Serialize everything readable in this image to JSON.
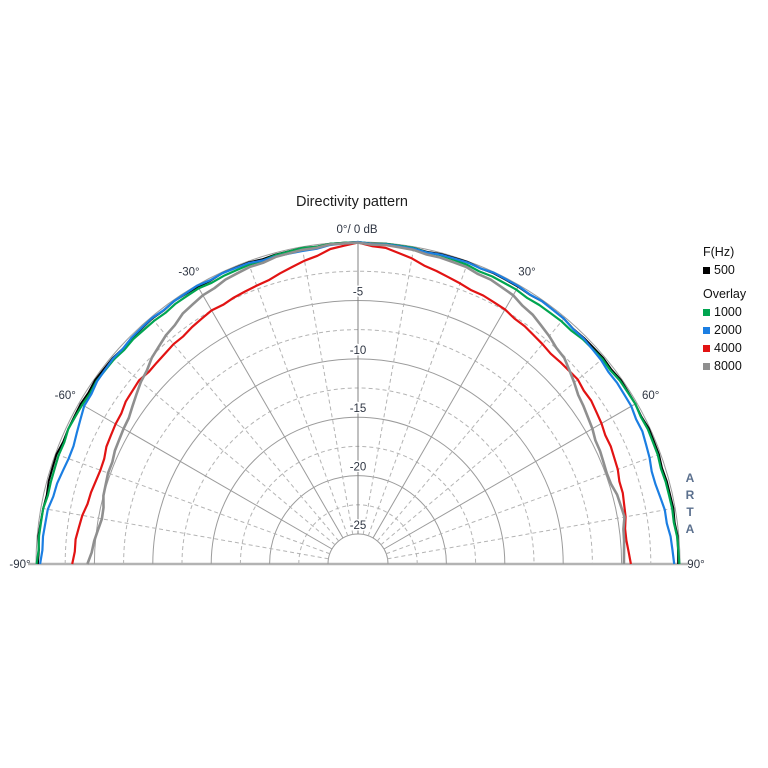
{
  "title": "Directivity pattern",
  "watermark": {
    "letters": [
      "A",
      "R",
      "T",
      "A"
    ],
    "color": "#5b708e"
  },
  "legend": {
    "freq_header": "F(Hz)",
    "main": {
      "label": "500",
      "color": "#000000"
    },
    "overlay_header": "Overlay",
    "overlays": [
      {
        "label": "1000",
        "color": "#00a550"
      },
      {
        "label": "2000",
        "color": "#1b7ee2"
      },
      {
        "label": "4000",
        "color": "#e21313"
      },
      {
        "label": "8000",
        "color": "#8f8f8f"
      }
    ]
  },
  "chart_data": {
    "type": "polar",
    "subtype": "directivity-half-polar",
    "title": "Directivity pattern",
    "apex_label": "0°/ 0 dB",
    "r_axis": {
      "unit": "dB",
      "max": 0,
      "min": -25,
      "major_step": 5,
      "minor_step": 2.5,
      "labels": [
        -5,
        -10,
        -15,
        -20,
        -25
      ]
    },
    "angle_axis": {
      "unit": "deg",
      "min": -90,
      "max": 90,
      "grid_step": 10,
      "major_step": 30
    },
    "angle_ticks": [
      {
        "angle": -90,
        "label": "-90°"
      },
      {
        "angle": -60,
        "label": "-60°"
      },
      {
        "angle": -30,
        "label": "-30°"
      },
      {
        "angle": 30,
        "label": "30°"
      },
      {
        "angle": 60,
        "label": "60°"
      },
      {
        "angle": 90,
        "label": "90°"
      }
    ],
    "grid_color": "#a8a8a8",
    "label_color": "#2e3542",
    "angles_deg": [
      -90,
      -85,
      -80,
      -75,
      -70,
      -65,
      -60,
      -55,
      -50,
      -45,
      -40,
      -35,
      -30,
      -25,
      -20,
      -15,
      -10,
      -5,
      0,
      5,
      10,
      15,
      20,
      25,
      30,
      35,
      40,
      45,
      50,
      55,
      60,
      65,
      70,
      75,
      80,
      85,
      90
    ],
    "series": [
      {
        "name": "500",
        "color": "#000000",
        "width": 2.0,
        "db": [
          -0.15,
          -0.1,
          -0.2,
          -0.15,
          -0.1,
          -0.2,
          -0.15,
          -0.1,
          -0.15,
          -0.2,
          -0.15,
          -0.1,
          -0.15,
          -0.1,
          -0.1,
          -0.15,
          -0.1,
          -0.05,
          0,
          -0.05,
          -0.1,
          -0.1,
          -0.05,
          -0.1,
          -0.15,
          -0.1,
          -0.15,
          -0.2,
          -0.15,
          -0.1,
          -0.15,
          -0.1,
          -0.15,
          -0.2,
          -0.15,
          -0.1,
          -0.15
        ]
      },
      {
        "name": "1000",
        "color": "#00a550",
        "width": 2.2,
        "db": [
          -0.05,
          -0.15,
          -0.2,
          -0.35,
          -0.3,
          -0.2,
          -0.3,
          -0.25,
          -0.3,
          -0.35,
          -0.4,
          -0.35,
          -0.3,
          -0.35,
          -0.3,
          -0.2,
          -0.1,
          -0.05,
          0,
          -0.05,
          -0.1,
          -0.2,
          -0.3,
          -0.4,
          -0.45,
          -0.5,
          -0.45,
          -0.35,
          -0.25,
          -0.2,
          -0.15,
          -0.2,
          -0.25,
          -0.3,
          -0.25,
          -0.15,
          -0.05
        ]
      },
      {
        "name": "2000",
        "color": "#1b7ee2",
        "width": 2.2,
        "db": [
          -0.35,
          -0.5,
          -0.6,
          -0.9,
          -1.2,
          -1.0,
          -0.5,
          -0.3,
          -0.2,
          -0.15,
          -0.1,
          -0.1,
          -0.05,
          -0.1,
          -0.15,
          -0.3,
          -0.35,
          -0.15,
          0,
          -0.1,
          -0.15,
          -0.15,
          -0.1,
          -0.05,
          -0.1,
          -0.1,
          -0.15,
          -0.25,
          -0.4,
          -0.5,
          -0.55,
          -0.7,
          -1.0,
          -1.2,
          -0.9,
          -0.7,
          -0.5
        ]
      },
      {
        "name": "4000",
        "color": "#e21313",
        "width": 2.2,
        "db": [
          -3.1,
          -3.3,
          -3.6,
          -3.9,
          -4.1,
          -3.8,
          -3.6,
          -3.3,
          -3.1,
          -3.2,
          -3.0,
          -2.8,
          -2.5,
          -2.4,
          -2.2,
          -1.8,
          -1.2,
          -0.5,
          -0.05,
          -0.4,
          -1.0,
          -1.6,
          -2.0,
          -2.2,
          -2.4,
          -2.7,
          -3.0,
          -3.1,
          -3.0,
          -3.2,
          -3.5,
          -3.7,
          -3.9,
          -4.1,
          -4.3,
          -4.5,
          -4.2
        ]
      },
      {
        "name": "8000",
        "color": "#8f8f8f",
        "width": 2.6,
        "db": [
          -4.4,
          -4.9,
          -5.3,
          -5.0,
          -4.8,
          -4.6,
          -4.4,
          -4.0,
          -3.3,
          -2.6,
          -2.0,
          -1.4,
          -1.0,
          -0.7,
          -0.5,
          -0.35,
          -0.25,
          -0.1,
          -0.05,
          -0.15,
          -0.25,
          -0.4,
          -0.5,
          -0.7,
          -1.0,
          -1.5,
          -2.1,
          -2.6,
          -3.4,
          -4.0,
          -4.4,
          -4.7,
          -4.9,
          -4.6,
          -4.4,
          -4.7,
          -4.8
        ]
      }
    ],
    "legend_position": "right"
  }
}
